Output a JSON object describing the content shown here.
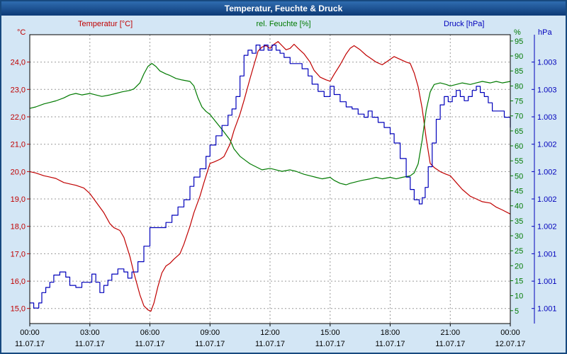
{
  "window": {
    "title": "Temperatur, Feuchte & Druck"
  },
  "chart_data": {
    "type": "line",
    "title": "Temperatur, Feuchte & Druck",
    "grid": true,
    "x_axis": {
      "range_hours": [
        0,
        24
      ],
      "hours": [
        0,
        3,
        6,
        9,
        12,
        15,
        18,
        21,
        24
      ],
      "label_times": [
        "00:00",
        "03:00",
        "06:00",
        "09:00",
        "12:00",
        "15:00",
        "18:00",
        "21:00",
        "00:00"
      ],
      "label_dates": [
        "11.07.17",
        "11.07.17",
        "11.07.17",
        "11.07.17",
        "11.07.17",
        "11.07.17",
        "11.07.17",
        "11.07.17",
        "12.07.17"
      ]
    },
    "temperature_axis": {
      "title": "Temperatur [°C]",
      "unit": "°C",
      "color": "#c00000",
      "range": [
        14.45,
        25.0
      ],
      "ticks": [
        24,
        23,
        22,
        21,
        20,
        19,
        18,
        17,
        16,
        15
      ],
      "tick_labels": [
        "24,0",
        "23,0",
        "22,0",
        "21,0",
        "20,0",
        "19,0",
        "18,0",
        "17,0",
        "16,0",
        "15,0"
      ]
    },
    "humidity_axis": {
      "title": "rel. Feuchte [%]",
      "unit": "%",
      "color": "#007a00",
      "range": [
        0.7,
        97.1
      ],
      "ticks": [
        95,
        90,
        85,
        80,
        75,
        70,
        65,
        60,
        55,
        50,
        45,
        40,
        35,
        30,
        25,
        20,
        15,
        10,
        5
      ]
    },
    "pressure_axis": {
      "title": "Druck [hPa]",
      "unit": "hPa",
      "color": "#0000bb",
      "range": [
        1000.8,
        1003.6
      ],
      "tick_labels": [
        "1.003",
        "1.003",
        "1.003",
        "1.002",
        "1.002",
        "1.002",
        "1.002",
        "1.001",
        "1.001",
        "1.001"
      ],
      "tick_positions_on_temp_scale": [
        24,
        23,
        22,
        21,
        20,
        19,
        18,
        17,
        16,
        15
      ]
    },
    "series": [
      {
        "name": "Temperatur",
        "axis": "temperature",
        "color": "#c00000",
        "step": false,
        "points": [
          [
            0,
            20.0
          ],
          [
            0.3,
            19.95
          ],
          [
            0.7,
            19.85
          ],
          [
            1,
            19.8
          ],
          [
            1.3,
            19.75
          ],
          [
            1.7,
            19.6
          ],
          [
            2,
            19.55
          ],
          [
            2.3,
            19.5
          ],
          [
            2.7,
            19.4
          ],
          [
            3,
            19.2
          ],
          [
            3.3,
            18.9
          ],
          [
            3.7,
            18.5
          ],
          [
            4,
            18.1
          ],
          [
            4.2,
            17.95
          ],
          [
            4.5,
            17.85
          ],
          [
            4.7,
            17.6
          ],
          [
            5,
            16.9
          ],
          [
            5.2,
            16.3
          ],
          [
            5.5,
            15.5
          ],
          [
            5.7,
            15.1
          ],
          [
            5.9,
            14.95
          ],
          [
            6.05,
            14.9
          ],
          [
            6.2,
            15.2
          ],
          [
            6.4,
            15.8
          ],
          [
            6.6,
            16.3
          ],
          [
            6.8,
            16.55
          ],
          [
            7,
            16.65
          ],
          [
            7.2,
            16.8
          ],
          [
            7.5,
            17.0
          ],
          [
            7.7,
            17.35
          ],
          [
            8,
            18.0
          ],
          [
            8.2,
            18.5
          ],
          [
            8.5,
            19.1
          ],
          [
            8.7,
            19.6
          ],
          [
            9,
            20.3
          ],
          [
            9.2,
            20.35
          ],
          [
            9.5,
            20.45
          ],
          [
            9.7,
            20.55
          ],
          [
            10,
            21.0
          ],
          [
            10.2,
            21.5
          ],
          [
            10.5,
            22.1
          ],
          [
            10.7,
            22.6
          ],
          [
            11,
            23.4
          ],
          [
            11.2,
            23.9
          ],
          [
            11.4,
            24.4
          ],
          [
            11.6,
            24.55
          ],
          [
            11.8,
            24.6
          ],
          [
            12,
            24.5
          ],
          [
            12.2,
            24.65
          ],
          [
            12.4,
            24.75
          ],
          [
            12.6,
            24.6
          ],
          [
            12.8,
            24.45
          ],
          [
            13,
            24.5
          ],
          [
            13.2,
            24.65
          ],
          [
            13.4,
            24.5
          ],
          [
            13.7,
            24.3
          ],
          [
            14,
            24.0
          ],
          [
            14.2,
            23.7
          ],
          [
            14.5,
            23.45
          ],
          [
            14.8,
            23.35
          ],
          [
            15,
            23.3
          ],
          [
            15.2,
            23.55
          ],
          [
            15.5,
            23.9
          ],
          [
            15.8,
            24.3
          ],
          [
            16,
            24.5
          ],
          [
            16.2,
            24.6
          ],
          [
            16.5,
            24.45
          ],
          [
            16.8,
            24.25
          ],
          [
            17,
            24.15
          ],
          [
            17.3,
            24.0
          ],
          [
            17.6,
            23.9
          ],
          [
            17.8,
            24.0
          ],
          [
            18,
            24.1
          ],
          [
            18.2,
            24.2
          ],
          [
            18.5,
            24.1
          ],
          [
            18.8,
            24.0
          ],
          [
            19,
            23.95
          ],
          [
            19.2,
            23.6
          ],
          [
            19.4,
            23.1
          ],
          [
            19.6,
            22.3
          ],
          [
            19.8,
            21.2
          ],
          [
            20,
            20.3
          ],
          [
            20.2,
            20.15
          ],
          [
            20.5,
            20.0
          ],
          [
            20.8,
            19.9
          ],
          [
            21,
            19.85
          ],
          [
            21.3,
            19.6
          ],
          [
            21.6,
            19.35
          ],
          [
            22,
            19.1
          ],
          [
            22.3,
            19.0
          ],
          [
            22.6,
            18.9
          ],
          [
            23,
            18.85
          ],
          [
            23.3,
            18.7
          ],
          [
            23.6,
            18.6
          ],
          [
            24,
            18.45
          ]
        ]
      },
      {
        "name": "rel. Feuchte",
        "axis": "humidity",
        "color": "#007a00",
        "step": false,
        "points": [
          [
            0,
            72.5
          ],
          [
            0.3,
            73
          ],
          [
            0.7,
            74
          ],
          [
            1,
            74.5
          ],
          [
            1.3,
            75
          ],
          [
            1.7,
            76
          ],
          [
            2,
            77
          ],
          [
            2.3,
            77.5
          ],
          [
            2.6,
            77
          ],
          [
            3,
            77.5
          ],
          [
            3.3,
            77
          ],
          [
            3.6,
            76.5
          ],
          [
            4,
            77
          ],
          [
            4.3,
            77.5
          ],
          [
            4.6,
            78
          ],
          [
            5,
            78.5
          ],
          [
            5.2,
            79
          ],
          [
            5.5,
            81
          ],
          [
            5.7,
            84
          ],
          [
            5.9,
            86.5
          ],
          [
            6.1,
            87.5
          ],
          [
            6.3,
            86.5
          ],
          [
            6.5,
            85
          ],
          [
            6.8,
            84
          ],
          [
            7,
            83.5
          ],
          [
            7.3,
            82.5
          ],
          [
            7.6,
            82
          ],
          [
            8,
            81.5
          ],
          [
            8.2,
            80
          ],
          [
            8.4,
            76
          ],
          [
            8.6,
            73
          ],
          [
            8.8,
            71.5
          ],
          [
            9,
            70.5
          ],
          [
            9.3,
            68
          ],
          [
            9.6,
            65.5
          ],
          [
            10,
            62
          ],
          [
            10.2,
            59
          ],
          [
            10.5,
            56.5
          ],
          [
            10.8,
            55
          ],
          [
            11,
            54
          ],
          [
            11.3,
            53
          ],
          [
            11.6,
            52
          ],
          [
            12,
            52.5
          ],
          [
            12.3,
            52
          ],
          [
            12.6,
            51.5
          ],
          [
            13,
            52
          ],
          [
            13.3,
            51.5
          ],
          [
            13.7,
            50.5
          ],
          [
            14,
            50
          ],
          [
            14.3,
            49.5
          ],
          [
            14.6,
            49
          ],
          [
            15,
            49.5
          ],
          [
            15.2,
            48.5
          ],
          [
            15.5,
            47.5
          ],
          [
            15.8,
            47
          ],
          [
            16,
            47.5
          ],
          [
            16.3,
            48
          ],
          [
            16.6,
            48.5
          ],
          [
            17,
            49
          ],
          [
            17.3,
            49.5
          ],
          [
            17.6,
            49
          ],
          [
            18,
            49.5
          ],
          [
            18.3,
            49
          ],
          [
            18.6,
            49.5
          ],
          [
            19,
            50
          ],
          [
            19.2,
            51
          ],
          [
            19.4,
            54
          ],
          [
            19.6,
            62
          ],
          [
            19.8,
            72
          ],
          [
            20,
            78
          ],
          [
            20.2,
            80.5
          ],
          [
            20.5,
            81
          ],
          [
            20.8,
            80.5
          ],
          [
            21,
            80
          ],
          [
            21.3,
            80.5
          ],
          [
            21.6,
            81
          ],
          [
            22,
            80.5
          ],
          [
            22.3,
            81
          ],
          [
            22.6,
            81.5
          ],
          [
            23,
            81
          ],
          [
            23.3,
            81.5
          ],
          [
            23.6,
            81
          ],
          [
            24,
            81.5
          ]
        ]
      },
      {
        "name": "Druck",
        "axis": "pressure",
        "color": "#0000bb",
        "step": true,
        "points": [
          [
            0,
            1001.0
          ],
          [
            0.2,
            1000.95
          ],
          [
            0.45,
            1001.0
          ],
          [
            0.6,
            1001.1
          ],
          [
            0.8,
            1001.15
          ],
          [
            1.0,
            1001.2
          ],
          [
            1.2,
            1001.27
          ],
          [
            1.5,
            1001.3
          ],
          [
            1.8,
            1001.25
          ],
          [
            2.0,
            1001.17
          ],
          [
            2.3,
            1001.15
          ],
          [
            2.6,
            1001.2
          ],
          [
            2.9,
            1001.2
          ],
          [
            3.1,
            1001.28
          ],
          [
            3.3,
            1001.2
          ],
          [
            3.5,
            1001.1
          ],
          [
            3.7,
            1001.17
          ],
          [
            3.9,
            1001.22
          ],
          [
            4.1,
            1001.28
          ],
          [
            4.4,
            1001.33
          ],
          [
            4.7,
            1001.3
          ],
          [
            4.9,
            1001.24
          ],
          [
            5.1,
            1001.3
          ],
          [
            5.4,
            1001.4
          ],
          [
            5.7,
            1001.55
          ],
          [
            6.0,
            1001.73
          ],
          [
            6.4,
            1001.73
          ],
          [
            6.8,
            1001.78
          ],
          [
            7.1,
            1001.85
          ],
          [
            7.4,
            1001.93
          ],
          [
            7.7,
            1002.0
          ],
          [
            8.0,
            1002.13
          ],
          [
            8.2,
            1002.22
          ],
          [
            8.5,
            1002.3
          ],
          [
            8.8,
            1002.42
          ],
          [
            9.0,
            1002.53
          ],
          [
            9.3,
            1002.62
          ],
          [
            9.6,
            1002.72
          ],
          [
            9.9,
            1002.82
          ],
          [
            10.1,
            1002.88
          ],
          [
            10.3,
            1003.0
          ],
          [
            10.5,
            1003.2
          ],
          [
            10.7,
            1003.4
          ],
          [
            10.9,
            1003.45
          ],
          [
            11.1,
            1003.42
          ],
          [
            11.3,
            1003.5
          ],
          [
            11.5,
            1003.45
          ],
          [
            11.7,
            1003.5
          ],
          [
            11.9,
            1003.45
          ],
          [
            12.1,
            1003.5
          ],
          [
            12.3,
            1003.45
          ],
          [
            12.5,
            1003.42
          ],
          [
            12.7,
            1003.38
          ],
          [
            13.0,
            1003.32
          ],
          [
            13.3,
            1003.32
          ],
          [
            13.6,
            1003.27
          ],
          [
            13.9,
            1003.2
          ],
          [
            14.1,
            1003.12
          ],
          [
            14.4,
            1003.05
          ],
          [
            14.7,
            1003.0
          ],
          [
            15.0,
            1003.1
          ],
          [
            15.2,
            1003.02
          ],
          [
            15.5,
            1002.95
          ],
          [
            15.8,
            1002.9
          ],
          [
            16.1,
            1002.88
          ],
          [
            16.4,
            1002.83
          ],
          [
            16.7,
            1002.8
          ],
          [
            16.9,
            1002.86
          ],
          [
            17.1,
            1002.8
          ],
          [
            17.4,
            1002.75
          ],
          [
            17.7,
            1002.7
          ],
          [
            18.0,
            1002.64
          ],
          [
            18.2,
            1002.55
          ],
          [
            18.5,
            1002.4
          ],
          [
            18.8,
            1002.22
          ],
          [
            19.0,
            1002.1
          ],
          [
            19.2,
            1002.0
          ],
          [
            19.45,
            1001.96
          ],
          [
            19.6,
            1002.02
          ],
          [
            19.75,
            1002.12
          ],
          [
            19.9,
            1002.32
          ],
          [
            20.1,
            1002.55
          ],
          [
            20.3,
            1002.78
          ],
          [
            20.5,
            1002.92
          ],
          [
            20.7,
            1003.0
          ],
          [
            20.9,
            1002.95
          ],
          [
            21.1,
            1003.0
          ],
          [
            21.3,
            1003.06
          ],
          [
            21.5,
            1003.0
          ],
          [
            21.7,
            1002.96
          ],
          [
            21.9,
            1003.0
          ],
          [
            22.1,
            1003.06
          ],
          [
            22.3,
            1003.1
          ],
          [
            22.5,
            1003.04
          ],
          [
            22.7,
            1003.0
          ],
          [
            22.9,
            1002.94
          ],
          [
            23.1,
            1002.86
          ],
          [
            23.4,
            1002.86
          ],
          [
            23.7,
            1002.8
          ],
          [
            24,
            1002.7
          ]
        ]
      }
    ]
  }
}
